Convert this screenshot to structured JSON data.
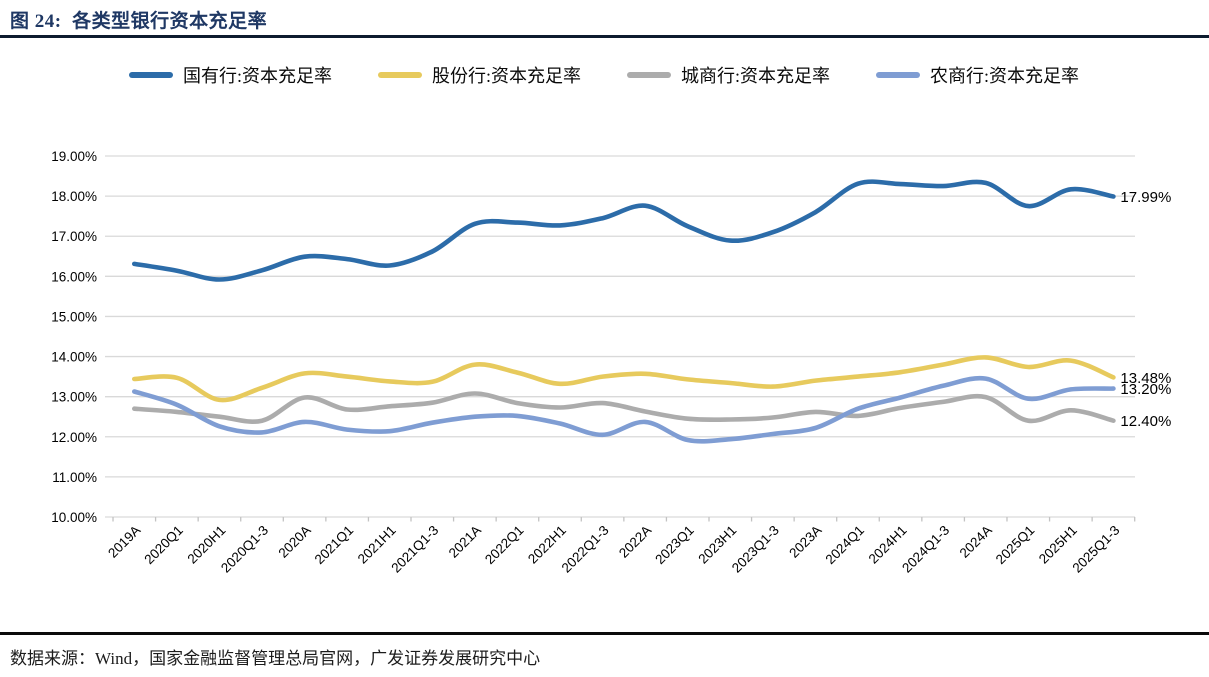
{
  "figure": {
    "title": "图 24:  各类型银行资本充足率",
    "source": "数据来源：Wind，国家金融监督管理总局官网，广发证券发展研究中心"
  },
  "legend": {
    "items": [
      {
        "label": "国有行:资本充足率",
        "color": "#2C6CA9"
      },
      {
        "label": "股份行:资本充足率",
        "color": "#E7CA5D"
      },
      {
        "label": "城商行:资本充足率",
        "color": "#ACACAC"
      },
      {
        "label": "农商行:资本充足率",
        "color": "#7F9DD3"
      }
    ]
  },
  "chart_data": {
    "type": "line",
    "title": "各类型银行资本充足率",
    "smooth": true,
    "grid": "horizontal",
    "legend_position": "top",
    "ylim": [
      10,
      19
    ],
    "ytick_step": 1,
    "ytick_labels": [
      "19.00%",
      "18.00%",
      "17.00%",
      "16.00%",
      "15.00%",
      "14.00%",
      "13.00%",
      "12.00%",
      "11.00%",
      "10.00%"
    ],
    "categories": [
      "2019A",
      "2020Q1",
      "2020H1",
      "2020Q1-3",
      "2020A",
      "2021Q1",
      "2021H1",
      "2021Q1-3",
      "2021A",
      "2022Q1",
      "2022H1",
      "2022Q1-3",
      "2022A",
      "2023Q1",
      "2023H1",
      "2023Q1-3",
      "2023A",
      "2024Q1",
      "2024H1",
      "2024Q1-3",
      "2024A",
      "2025Q1",
      "2025H1",
      "2025Q1-3"
    ],
    "series": [
      {
        "name": "国有行:资本充足率",
        "color": "#2C6CA9",
        "end_label": "17.99%",
        "values": [
          16.31,
          16.14,
          15.92,
          16.15,
          16.49,
          16.43,
          16.27,
          16.62,
          17.31,
          17.34,
          17.27,
          17.45,
          17.76,
          17.25,
          16.89,
          17.1,
          17.6,
          18.31,
          18.3,
          18.25,
          18.33,
          17.75,
          18.17,
          17.99
        ]
      },
      {
        "name": "股份行:资本充足率",
        "color": "#E7CA5D",
        "end_label": "13.48%",
        "values": [
          13.44,
          13.47,
          12.92,
          13.22,
          13.58,
          13.5,
          13.38,
          13.37,
          13.8,
          13.6,
          13.32,
          13.5,
          13.57,
          13.43,
          13.34,
          13.25,
          13.4,
          13.5,
          13.61,
          13.8,
          13.98,
          13.74,
          13.9,
          13.48
        ]
      },
      {
        "name": "城商行:资本充足率",
        "color": "#ACACAC",
        "end_label": "12.40%",
        "values": [
          12.7,
          12.62,
          12.5,
          12.4,
          12.98,
          12.68,
          12.76,
          12.85,
          13.08,
          12.84,
          12.73,
          12.84,
          12.63,
          12.45,
          12.43,
          12.48,
          12.62,
          12.52,
          12.72,
          12.87,
          12.99,
          12.4,
          12.66,
          12.4
        ]
      },
      {
        "name": "农商行:资本充足率",
        "color": "#7F9DD3",
        "end_label": "13.20%",
        "values": [
          13.13,
          12.8,
          12.26,
          12.11,
          12.37,
          12.18,
          12.14,
          12.35,
          12.5,
          12.52,
          12.33,
          12.05,
          12.37,
          11.92,
          11.94,
          12.07,
          12.22,
          12.7,
          12.98,
          13.27,
          13.45,
          12.95,
          13.18,
          13.2
        ]
      }
    ],
    "colors": {
      "grid": "#D9D9D9",
      "axis": "#C3C3C3",
      "tick_label": "#000000",
      "end_label": "#000000"
    }
  }
}
